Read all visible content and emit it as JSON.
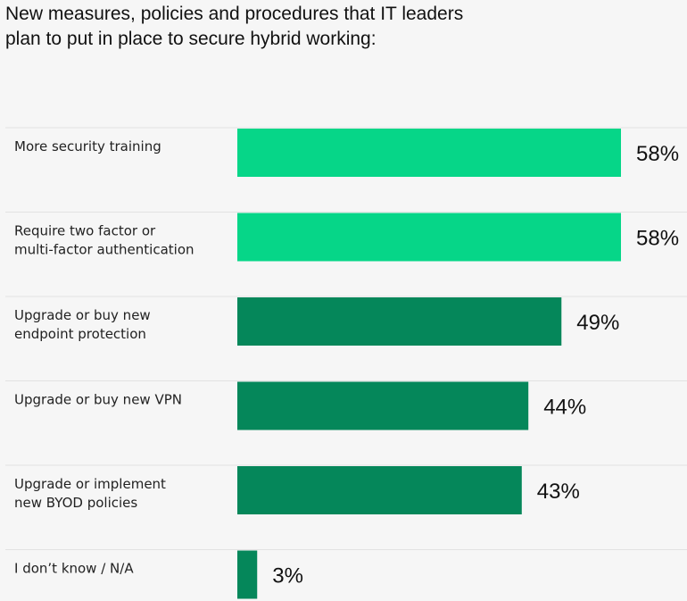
{
  "title_lines": [
    "New measures, policies and procedures that IT leaders",
    "plan to put in place to secure hybrid working:"
  ],
  "colors": {
    "bar_highlight": "#06d688",
    "bar_default": "#05875a",
    "row_divider": "#e2e2e2",
    "background": "#f6f6f6"
  },
  "chart_data": {
    "type": "bar",
    "orientation": "horizontal",
    "title": "New measures, policies and procedures that IT leaders plan to put in place to secure hybrid working:",
    "categories": [
      "More security training",
      "Require two factor or multi-factor authentication",
      "Upgrade or buy new endpoint protection",
      "Upgrade or buy new VPN",
      "Upgrade or implement new BYOD policies",
      "I don’t know / N/A"
    ],
    "category_label_lines": [
      [
        "More security training"
      ],
      [
        "Require two factor or",
        "multi-factor authentication"
      ],
      [
        "Upgrade or buy new",
        "endpoint protection"
      ],
      [
        "Upgrade or buy new VPN"
      ],
      [
        "Upgrade or implement",
        "new BYOD policies"
      ],
      [
        "I don’t know / N/A"
      ]
    ],
    "values": [
      58,
      58,
      49,
      44,
      43,
      3
    ],
    "value_labels": [
      "58%",
      "58%",
      "49%",
      "44%",
      "43%",
      "3%"
    ],
    "highlighted": [
      true,
      true,
      false,
      false,
      false,
      false
    ],
    "xlim": [
      0,
      58
    ],
    "xlabel": "",
    "ylabel": "",
    "grid": false,
    "legend": "none"
  }
}
